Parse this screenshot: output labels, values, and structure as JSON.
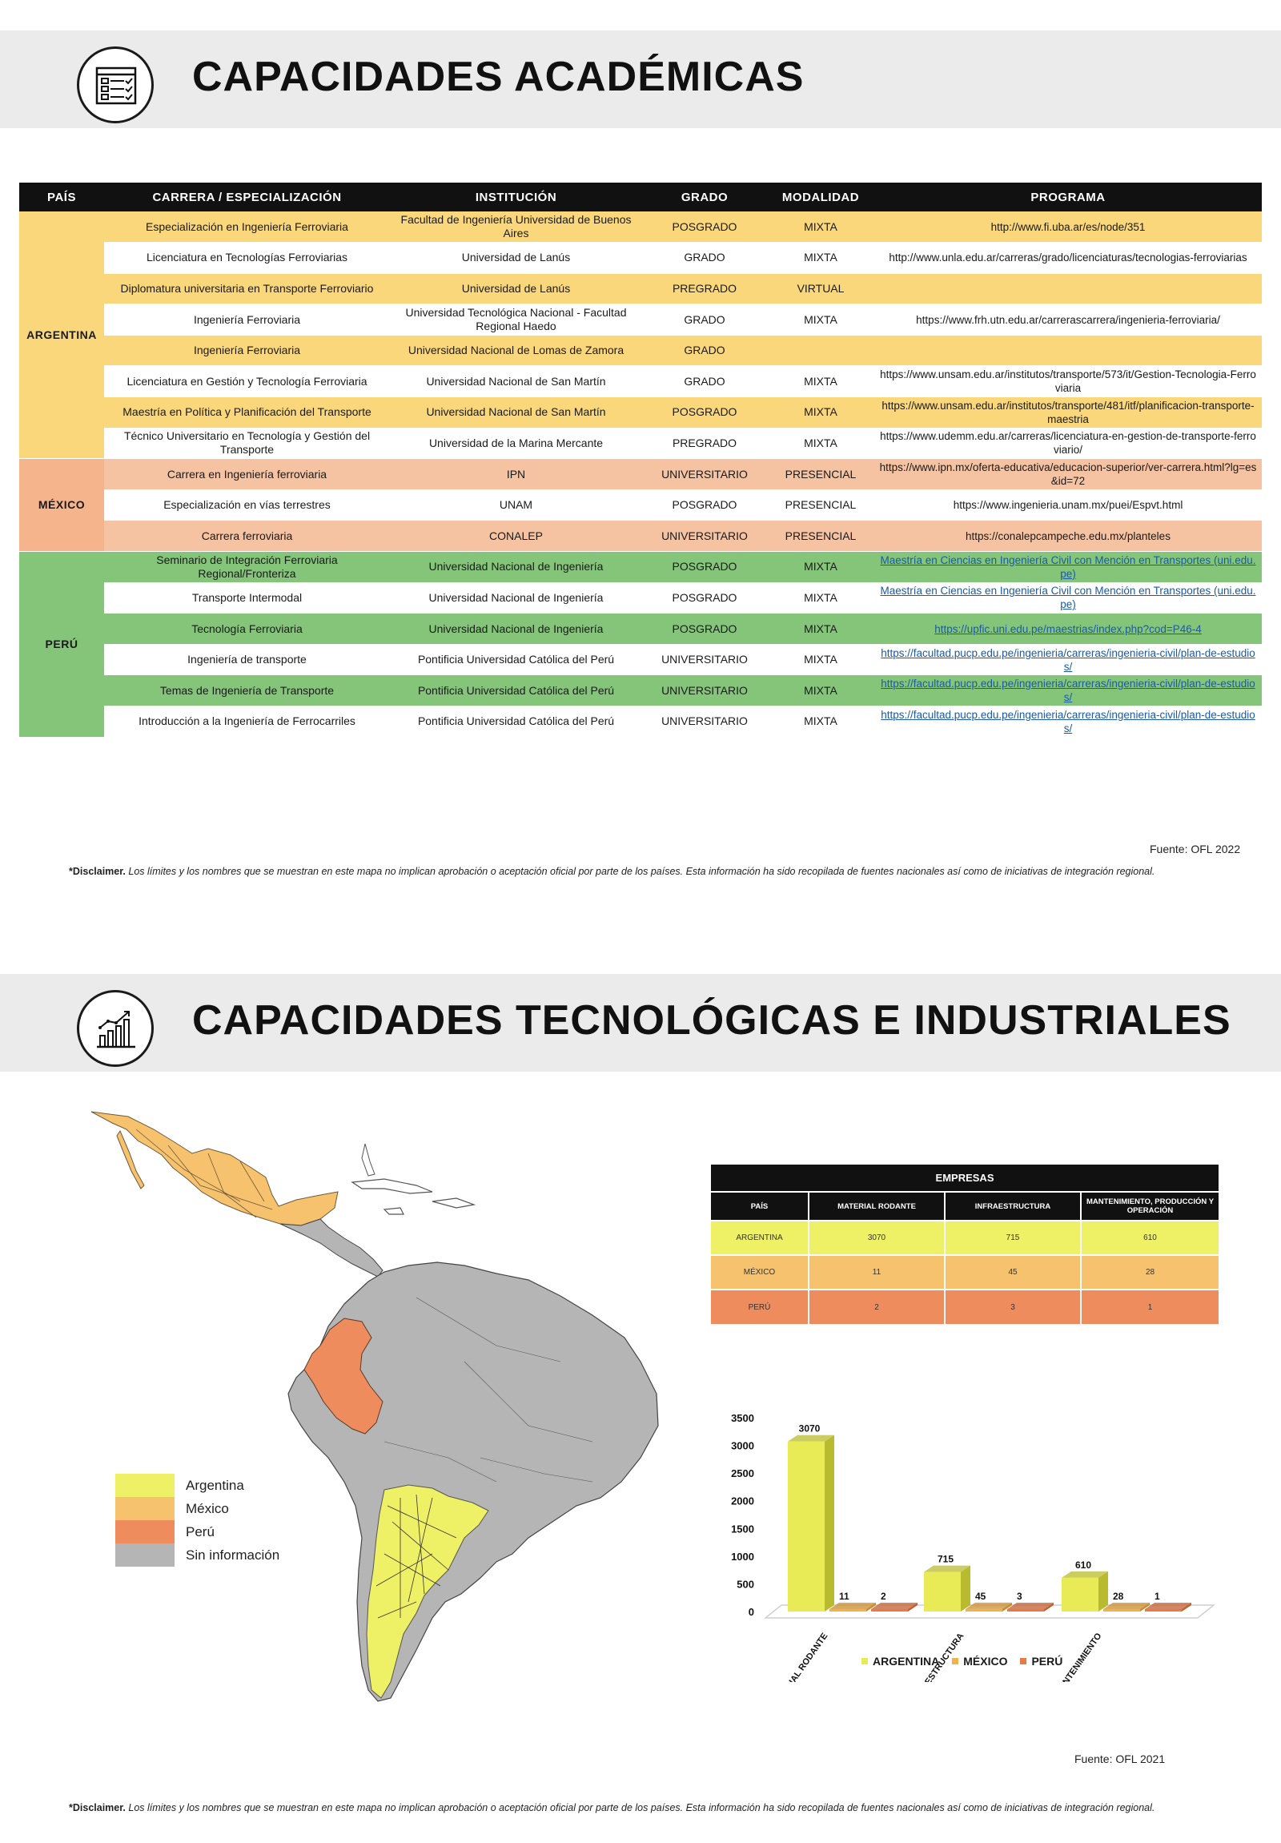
{
  "section1": {
    "title": "CAPACIDADES ACADÉMICAS",
    "icon": "checklist-icon",
    "table": {
      "headers": [
        "PAÍS",
        "CARRERA / ESPECIALIZACIÓN",
        "INSTITUCIÓN",
        "GRADO",
        "MODALIDAD",
        "PROGRAMA"
      ],
      "countries": [
        "ARGENTINA",
        "MÉXICO",
        "PERÚ"
      ],
      "rows": [
        {
          "carrera": "Especialización en Ingeniería Ferroviaria",
          "institucion": "Facultad de Ingeniería Universidad de Buenos Aires",
          "grado": "POSGRADO",
          "modalidad": "MIXTA",
          "programa": "http://www.fi.uba.ar/es/node/351"
        },
        {
          "carrera": "Licenciatura en Tecnologías Ferroviarias",
          "institucion": "Universidad de Lanús",
          "grado": "GRADO",
          "modalidad": "MIXTA",
          "programa": "http://www.unla.edu.ar/carreras/grado/licenciaturas/tecnologias-ferroviarias"
        },
        {
          "carrera": "Diplomatura universitaria en Transporte Ferroviario",
          "institucion": "Universidad de Lanús",
          "grado": "PREGRADO",
          "modalidad": "VIRTUAL",
          "programa": ""
        },
        {
          "carrera": "Ingeniería Ferroviaria",
          "institucion": "Universidad Tecnológica Nacional - Facultad Regional Haedo",
          "grado": "GRADO",
          "modalidad": "MIXTA",
          "programa": "https://www.frh.utn.edu.ar/carrerascarrera/ingenieria-ferroviaria/"
        },
        {
          "carrera": "Ingeniería Ferroviaria",
          "institucion": "Universidad Nacional de Lomas de Zamora",
          "grado": "GRADO",
          "modalidad": "",
          "programa": ""
        },
        {
          "carrera": "Licenciatura en Gestión y Tecnología Ferroviaria",
          "institucion": "Universidad Nacional de San Martín",
          "grado": "GRADO",
          "modalidad": "MIXTA",
          "programa": "https://www.unsam.edu.ar/institutos/transporte/573/it/Gestion-Tecnologia-Ferroviaria"
        },
        {
          "carrera": "Maestría en Política y Planificación del Transporte",
          "institucion": "Universidad Nacional de San Martín",
          "grado": "POSGRADO",
          "modalidad": "MIXTA",
          "programa": "https://www.unsam.edu.ar/institutos/transporte/481/itf/planificacion-transporte-maestria"
        },
        {
          "carrera": "Técnico Universitario en Tecnología y Gestión del Transporte",
          "institucion": "Universidad de la Marina Mercante",
          "grado": "PREGRADO",
          "modalidad": "MIXTA",
          "programa": "https://www.udemm.edu.ar/carreras/licenciatura-en-gestion-de-transporte-ferroviario/"
        },
        {
          "carrera": "Carrera en Ingeniería ferroviaria",
          "institucion": "IPN",
          "grado": "UNIVERSITARIO",
          "modalidad": "PRESENCIAL",
          "programa": "https://www.ipn.mx/oferta-educativa/educacion-superior/ver-carrera.html?lg=es&id=72"
        },
        {
          "carrera": "Especialización en vías terrestres",
          "institucion": "UNAM",
          "grado": "POSGRADO",
          "modalidad": "PRESENCIAL",
          "programa": "https://www.ingenieria.unam.mx/puei/Espvt.html"
        },
        {
          "carrera": "Carrera ferroviaria",
          "institucion": "CONALEP",
          "grado": "UNIVERSITARIO",
          "modalidad": "PRESENCIAL",
          "programa": "https://conalepcampeche.edu.mx/planteles"
        },
        {
          "carrera": "Seminario de Integración Ferroviaria Regional/Fronteriza",
          "institucion": "Universidad Nacional de Ingeniería",
          "grado": "POSGRADO",
          "modalidad": "MIXTA",
          "programa": "Maestría en Ciencias en Ingeniería Civil con Mención en Transportes (uni.edu.pe)"
        },
        {
          "carrera": "Transporte Intermodal",
          "institucion": "Universidad Nacional de Ingeniería",
          "grado": "POSGRADO",
          "modalidad": "MIXTA",
          "programa": "Maestría en Ciencias en Ingeniería Civil con Mención en Transportes (uni.edu.pe)"
        },
        {
          "carrera": "Tecnología Ferroviaria",
          "institucion": "Universidad Nacional de Ingeniería",
          "grado": "POSGRADO",
          "modalidad": "MIXTA",
          "programa": "https://upfic.uni.edu.pe/maestrias/index.php?cod=P46-4"
        },
        {
          "carrera": "Ingeniería de transporte",
          "institucion": "Pontificia Universidad Católica del Perú",
          "grado": "UNIVERSITARIO",
          "modalidad": "MIXTA",
          "programa": "https://facultad.pucp.edu.pe/ingenieria/carreras/ingenieria-civil/plan-de-estudios/"
        },
        {
          "carrera": "Temas de Ingeniería de Transporte",
          "institucion": "Pontificia Universidad Católica del Perú",
          "grado": "UNIVERSITARIO",
          "modalidad": "MIXTA",
          "programa": "https://facultad.pucp.edu.pe/ingenieria/carreras/ingenieria-civil/plan-de-estudios/"
        },
        {
          "carrera": "Introducción a la Ingeniería de Ferrocarriles",
          "institucion": "Pontificia Universidad Católica del Perú",
          "grado": "UNIVERSITARIO",
          "modalidad": "MIXTA",
          "programa": "https://facultad.pucp.edu.pe/ingenieria/carreras/ingenieria-civil/plan-de-estudios/"
        }
      ]
    },
    "source": "Fuente: OFL 2022",
    "disclaimer_label": "*Disclaimer.",
    "disclaimer_text": "Los límites y los nombres que se muestran en este mapa no implican aprobación o aceptación oficial por parte de los países. Esta información ha sido recopilada de fuentes nacionales así como de iniciativas de integración regional."
  },
  "section2": {
    "title": "CAPACIDADES TECNOLÓGICAS E INDUSTRIALES",
    "icon": "bar-chart-growth-icon",
    "legend": [
      {
        "label": "Argentina",
        "color": "#eef066"
      },
      {
        "label": "México",
        "color": "#f7c26d"
      },
      {
        "label": "Perú",
        "color": "#ef8c5e"
      },
      {
        "label": "Sin información",
        "color": "#b5b5b5"
      }
    ],
    "empresas": {
      "title": "EMPRESAS",
      "headers": [
        "PAÍS",
        "MATERIAL RODANTE",
        "INFRAESTRUCTURA",
        "MANTENIMIENTO, PRODUCCIÓN Y OPERACIÓN"
      ],
      "rows": [
        {
          "pais": "ARGENTINA",
          "material": "3070",
          "infra": "715",
          "mant": "610",
          "color": "#eef066"
        },
        {
          "pais": "MÉXICO",
          "material": "11",
          "infra": "45",
          "mant": "28",
          "color": "#f7c26d"
        },
        {
          "pais": "PERÚ",
          "material": "2",
          "infra": "3",
          "mant": "1",
          "color": "#ef8c5e"
        }
      ]
    },
    "source": "Fuente: OFL 2021",
    "disclaimer_label": "*Disclaimer.",
    "disclaimer_text": "Los límites y los nombres que se muestran en este mapa no implican aprobación o aceptación oficial por parte de los países. Esta información ha sido recopilada de fuentes nacionales así como de iniciativas de integración regional."
  },
  "chart_data": {
    "type": "bar",
    "categories": [
      "MATERIAL RODANTE",
      "INFRAESTRUCTURA",
      "MANTENIMIENTO"
    ],
    "series": [
      {
        "name": "ARGENTINA",
        "values": [
          3070,
          715,
          610
        ],
        "color": "#e8eb56"
      },
      {
        "name": "MÉXICO",
        "values": [
          11,
          45,
          28
        ],
        "color": "#f2b24a"
      },
      {
        "name": "PERÚ",
        "values": [
          2,
          3,
          1
        ],
        "color": "#e97a47"
      }
    ],
    "yticks": [
      0,
      500,
      1000,
      1500,
      2000,
      2500,
      3000,
      3500
    ],
    "ylim": [
      0,
      3500
    ],
    "legend_position": "bottom"
  }
}
